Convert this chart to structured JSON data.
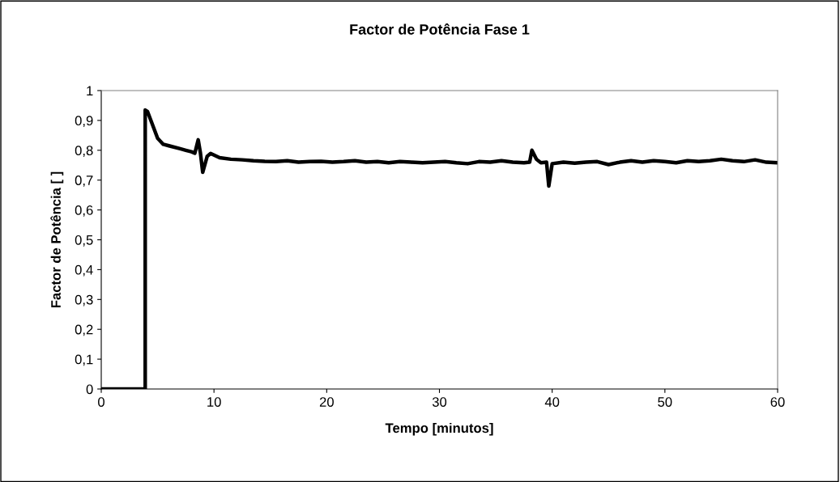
{
  "chart_data": {
    "type": "line",
    "title": "Factor de Potência Fase 1",
    "xlabel": "Tempo [minutos]",
    "ylabel": "Factor de Potência [ ]",
    "xlim": [
      0,
      60
    ],
    "xticks": [
      0,
      10,
      20,
      30,
      40,
      50,
      60
    ],
    "ylim": [
      0,
      1
    ],
    "yticks": [
      0,
      {
        "value": 0.1,
        "label": "0,1"
      },
      {
        "value": 0.2,
        "label": "0,2"
      },
      {
        "value": 0.3,
        "label": "0,3"
      },
      {
        "value": 0.4,
        "label": "0,4"
      },
      {
        "value": 0.5,
        "label": "0,5"
      },
      {
        "value": 0.6,
        "label": "0,6"
      },
      {
        "value": 0.7,
        "label": "0,7"
      },
      {
        "value": 0.8,
        "label": "0,8"
      },
      {
        "value": 0.9,
        "label": "0,9"
      },
      1
    ],
    "grid": false,
    "legend": false,
    "marker": "none",
    "line_style": "solid",
    "series": [
      {
        "color": "#000000",
        "x": [
          0,
          3.9,
          3.9,
          4.1,
          4.5,
          5.0,
          5.5,
          6.0,
          7.0,
          7.5,
          8.0,
          8.3,
          8.6,
          8.8,
          9.0,
          9.4,
          9.7,
          10.5,
          11.5,
          12.5,
          13.5,
          14.5,
          15.5,
          16.5,
          17.5,
          18.5,
          19.5,
          20.5,
          21.5,
          22.5,
          23.5,
          24.5,
          25.5,
          26.5,
          27.5,
          28.5,
          29.5,
          30.5,
          31.5,
          32.5,
          33.5,
          34.5,
          35.5,
          36.5,
          37.5,
          38.0,
          38.2,
          38.6,
          39.0,
          39.5,
          39.7,
          40.0,
          41,
          42,
          43,
          44,
          45,
          46,
          47,
          48,
          49,
          50,
          51,
          52,
          53,
          54,
          55,
          56,
          57,
          58,
          59,
          60
        ],
        "values": [
          0,
          0,
          0.935,
          0.93,
          0.89,
          0.84,
          0.82,
          0.815,
          0.805,
          0.8,
          0.795,
          0.79,
          0.835,
          0.79,
          0.726,
          0.78,
          0.789,
          0.775,
          0.77,
          0.768,
          0.765,
          0.763,
          0.762,
          0.765,
          0.76,
          0.762,
          0.763,
          0.76,
          0.762,
          0.765,
          0.76,
          0.762,
          0.758,
          0.762,
          0.76,
          0.758,
          0.76,
          0.762,
          0.758,
          0.755,
          0.762,
          0.76,
          0.765,
          0.76,
          0.758,
          0.76,
          0.8,
          0.77,
          0.758,
          0.76,
          0.68,
          0.755,
          0.76,
          0.757,
          0.76,
          0.762,
          0.752,
          0.76,
          0.765,
          0.76,
          0.765,
          0.762,
          0.758,
          0.765,
          0.762,
          0.765,
          0.77,
          0.765,
          0.762,
          0.768,
          0.76,
          0.758
        ]
      }
    ]
  }
}
